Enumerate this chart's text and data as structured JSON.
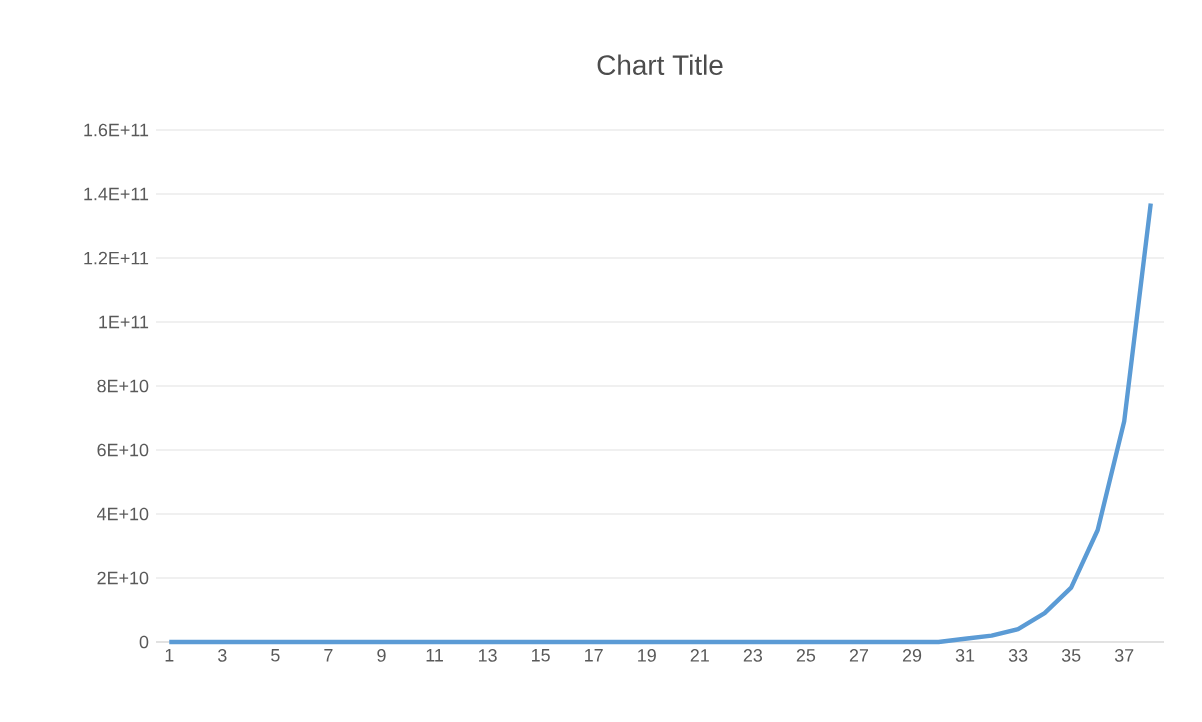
{
  "chart_data": {
    "type": "line",
    "title": "Chart Title",
    "categories": [
      "1",
      null,
      "3",
      null,
      "5",
      null,
      "7",
      null,
      "9",
      null,
      "11",
      null,
      "13",
      null,
      "15",
      null,
      "17",
      null,
      "19",
      null,
      "21",
      null,
      "23",
      null,
      "25",
      null,
      "27",
      null,
      "29",
      null,
      "31",
      null,
      "33",
      null,
      "35",
      null,
      "37",
      null
    ],
    "series": [
      {
        "color": "#5b9bd5",
        "values": [
          0,
          0,
          0,
          0,
          0,
          0,
          0,
          0,
          0,
          0,
          0,
          0,
          0,
          0,
          0,
          0,
          0,
          0,
          0,
          0,
          0,
          0,
          0,
          0,
          0,
          0,
          0,
          0,
          0,
          0,
          1000000000,
          2000000000,
          4000000000,
          9000000000,
          17000000000,
          35000000000,
          69000000000,
          137000000000
        ]
      }
    ],
    "ylim": [
      0,
      160000000000
    ],
    "yticks": [
      0,
      {
        "value": 20000000000,
        "label": "2E+10"
      },
      {
        "value": 40000000000,
        "label": "4E+10"
      },
      {
        "value": 60000000000,
        "label": "6E+10"
      },
      {
        "value": 80000000000,
        "label": "8E+10"
      },
      {
        "value": 100000000000,
        "label": "1E+11"
      },
      {
        "value": 120000000000,
        "label": "1.2E+11"
      },
      {
        "value": 140000000000,
        "label": "1.4E+11"
      },
      {
        "value": 160000000000,
        "label": "1.6E+11"
      }
    ],
    "grid": "y",
    "marker": "none",
    "line_style": "solid"
  }
}
